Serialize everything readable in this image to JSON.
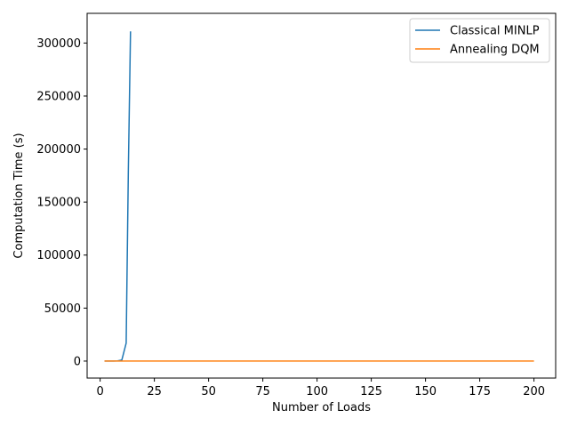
{
  "chart_data": {
    "type": "line",
    "title": "",
    "xlabel": "Number of Loads",
    "ylabel": "Computation Time (s)",
    "xlim": [
      -6,
      210
    ],
    "ylim": [
      -16000,
      328000
    ],
    "xticks": [
      0,
      25,
      50,
      75,
      100,
      125,
      150,
      175,
      200
    ],
    "yticks": [
      0,
      50000,
      100000,
      150000,
      200000,
      250000,
      300000
    ],
    "grid": false,
    "legend_position": "top-right",
    "series": [
      {
        "name": "Classical MINLP",
        "color": "#1f77b4",
        "x": [
          2,
          4,
          6,
          8,
          10,
          12,
          13,
          14
        ],
        "y": [
          0,
          5,
          20,
          150,
          1000,
          17000,
          180000,
          311000
        ]
      },
      {
        "name": "Annealing DQM",
        "color": "#ff7f0e",
        "x": [
          2,
          10,
          25,
          50,
          75,
          100,
          125,
          150,
          175,
          200
        ],
        "y": [
          5,
          6,
          8,
          10,
          12,
          14,
          16,
          18,
          20,
          22
        ]
      }
    ]
  }
}
